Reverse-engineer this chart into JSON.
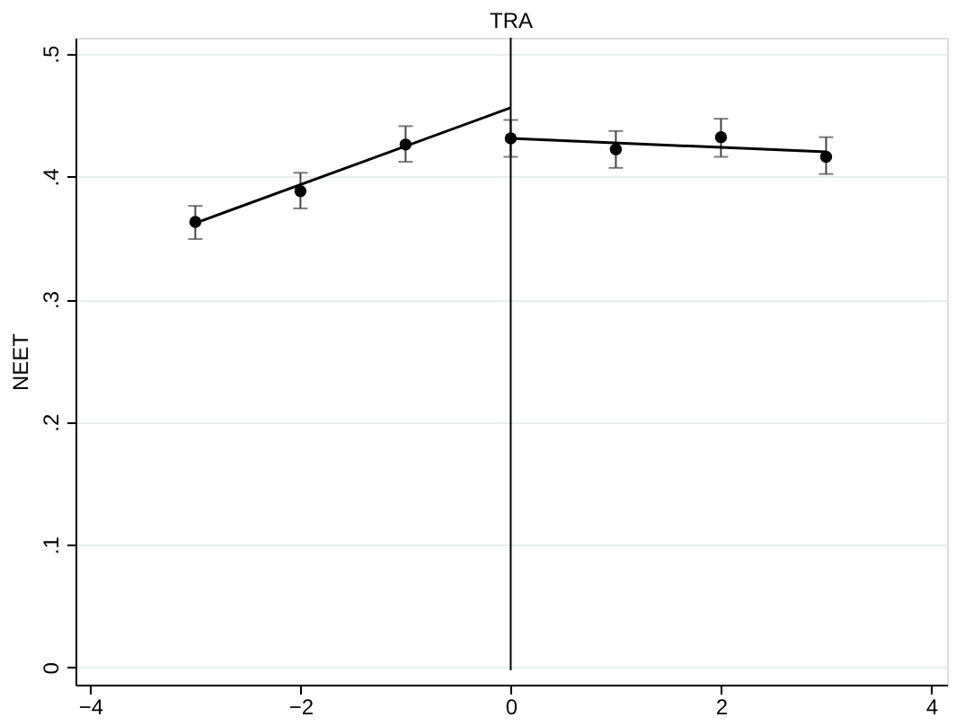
{
  "chart_data": {
    "type": "scatter",
    "title": "TRA",
    "ylabel": "NEET",
    "x": [
      -3,
      -2,
      -1,
      0,
      1,
      2,
      3
    ],
    "series": [
      {
        "color": "#000000",
        "values": [
          0.363,
          0.388,
          0.426,
          0.431,
          0.422,
          0.432,
          0.416
        ],
        "errors": [
          [
            0.349,
            0.376
          ],
          [
            0.374,
            0.403
          ],
          [
            0.412,
            0.441
          ],
          [
            0.416,
            0.446
          ],
          [
            0.407,
            0.437
          ],
          [
            0.416,
            0.447
          ],
          [
            0.402,
            0.432
          ]
        ],
        "marker": "circle"
      },
      {
        "type": "line",
        "color": "#000000",
        "x": [
          -3,
          0
        ],
        "values": [
          0.362,
          0.456
        ],
        "line_style": "solid",
        "marker": "none"
      },
      {
        "type": "line",
        "color": "#000000",
        "x": [
          0,
          3
        ],
        "values": [
          0.431,
          0.42
        ],
        "line_style": "solid",
        "marker": "none"
      }
    ],
    "xlim": [
      -4.14,
      4.15
    ],
    "xticks": [
      -4,
      -2,
      0,
      2,
      4
    ],
    "ylim": [
      -0.014,
      0.513
    ],
    "yticks": [
      {
        "value": 0,
        "label": "0"
      },
      {
        "value": 0.1,
        "label": ".1"
      },
      {
        "value": 0.2,
        "label": ".2"
      },
      {
        "value": 0.3,
        "label": ".3"
      },
      {
        "value": 0.4,
        "label": ".4"
      },
      {
        "value": 0.5,
        "label": ".5"
      }
    ],
    "ref_lines": [
      {
        "axis": "x",
        "value": 0,
        "color": "#000000"
      }
    ],
    "grid": "y"
  }
}
